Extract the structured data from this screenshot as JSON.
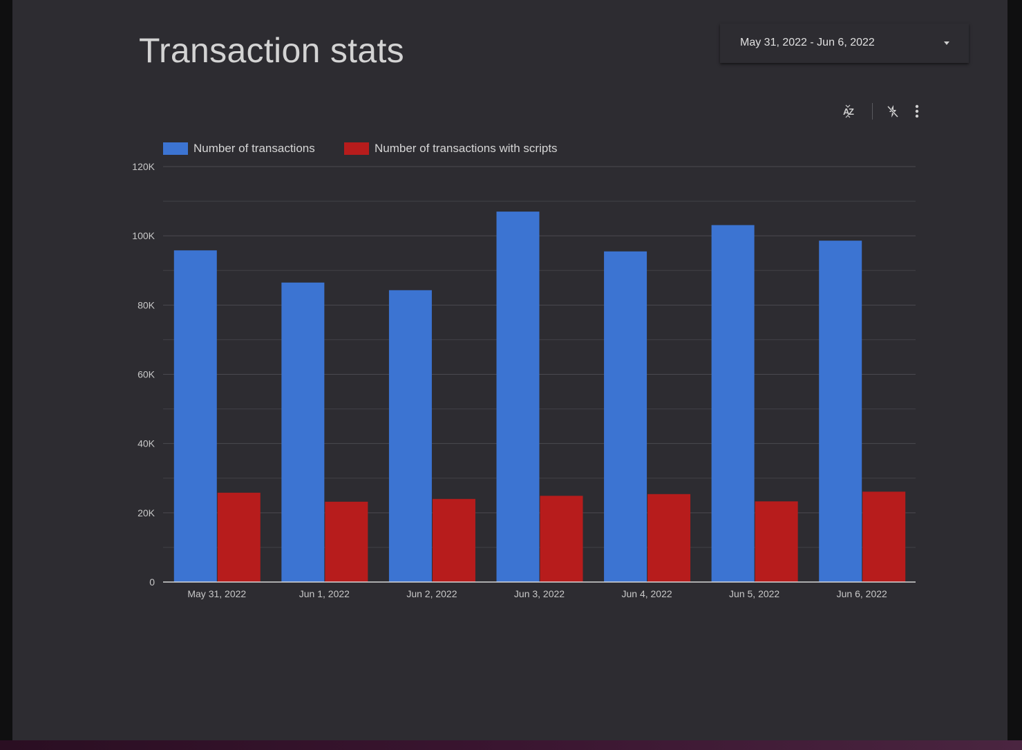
{
  "title": "Transaction stats",
  "date_range": {
    "label": "May 31, 2022 - Jun 6, 2022"
  },
  "toolbar": {
    "icons": [
      "sort-az-icon",
      "flash-off-icon",
      "more-vert-icon"
    ]
  },
  "colors": {
    "series_transactions": "#3c74d2",
    "series_scripts": "#b71c1c",
    "background": "#2d2c31"
  },
  "chart_data": {
    "type": "bar",
    "categories": [
      "May 31, 2022",
      "Jun 1, 2022",
      "Jun 2, 2022",
      "Jun 3, 2022",
      "Jun 4, 2022",
      "Jun 5, 2022",
      "Jun 6, 2022"
    ],
    "series": [
      {
        "name": "Number of transactions",
        "color": "#3c74d2",
        "values": [
          95800,
          86500,
          84300,
          107000,
          95500,
          103100,
          98600
        ]
      },
      {
        "name": "Number of transactions with scripts",
        "color": "#b71c1c",
        "values": [
          25800,
          23200,
          24000,
          24900,
          25400,
          23300,
          26100
        ]
      }
    ],
    "yticks": [
      0,
      20000,
      40000,
      60000,
      80000,
      100000,
      120000
    ],
    "ytick_labels": [
      "0",
      "20K",
      "40K",
      "60K",
      "80K",
      "100K",
      "120K"
    ],
    "ylim": [
      0,
      120000
    ],
    "grid": true,
    "legend": "top-left"
  }
}
